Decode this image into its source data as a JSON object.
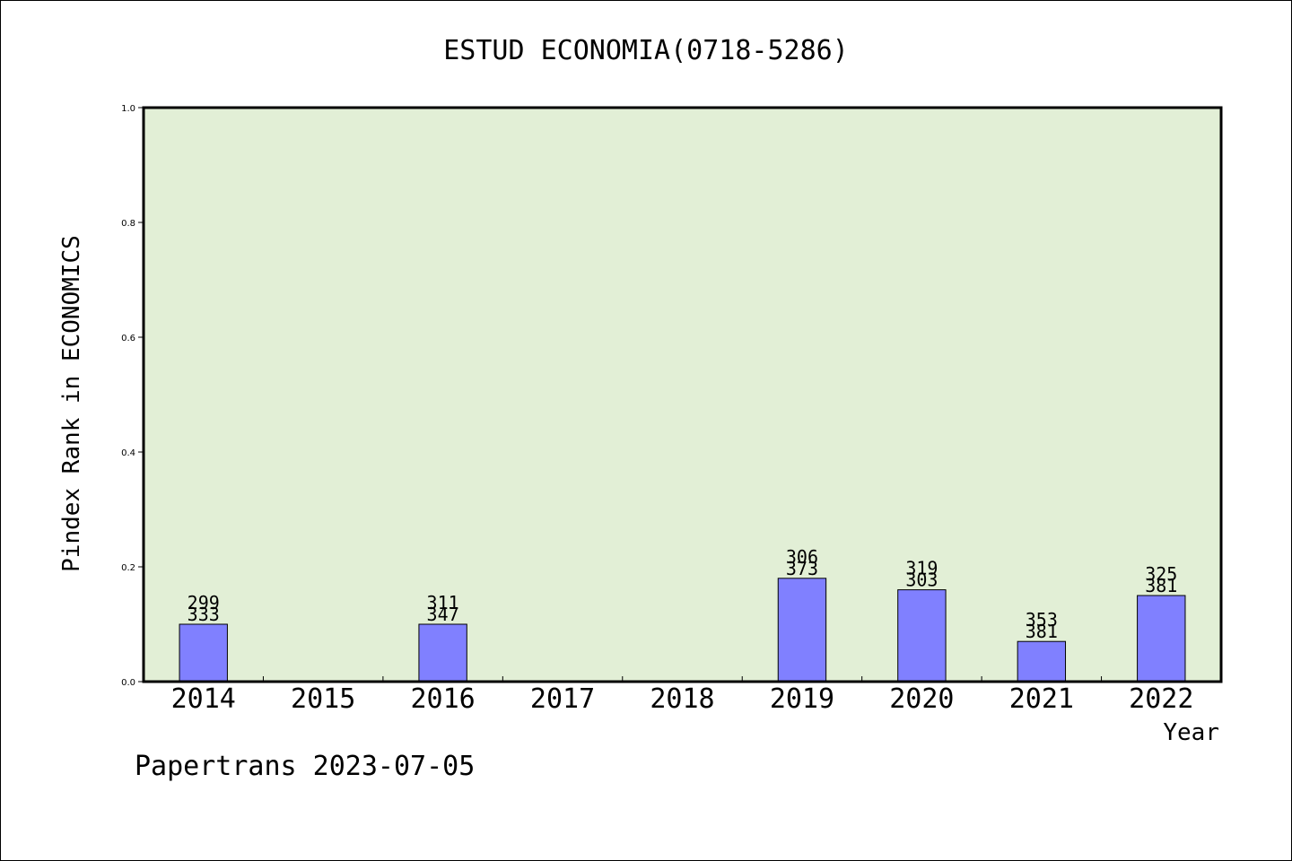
{
  "chart_data": {
    "type": "bar",
    "title": "ESTUD ECONOMIA(0718-5286)",
    "xlabel": "Year",
    "ylabel": "Pindex Rank in ECONOMICS",
    "ylim": [
      0,
      1.0
    ],
    "yticks": [
      "0.0",
      "0.2",
      "0.4",
      "0.6",
      "0.8",
      "1.0"
    ],
    "categories": [
      "2014",
      "2015",
      "2016",
      "2017",
      "2018",
      "2019",
      "2020",
      "2021",
      "2022"
    ],
    "values": [
      0.1,
      0,
      0.1,
      0,
      0,
      0.18,
      0.16,
      0.07,
      0.15
    ],
    "labels_top": [
      "299",
      "",
      "311",
      "",
      "",
      "306",
      "319",
      "353",
      "325"
    ],
    "labels_bottom": [
      "333",
      "",
      "347",
      "",
      "",
      "373",
      "303",
      "381",
      "381"
    ],
    "grid": false,
    "legend": "none",
    "colors": {
      "plot_bg": "#e2efd6",
      "bar": "#8080ff",
      "axis": "#000000"
    }
  },
  "footer": {
    "credit": "Papertrans 2023-07-05"
  }
}
